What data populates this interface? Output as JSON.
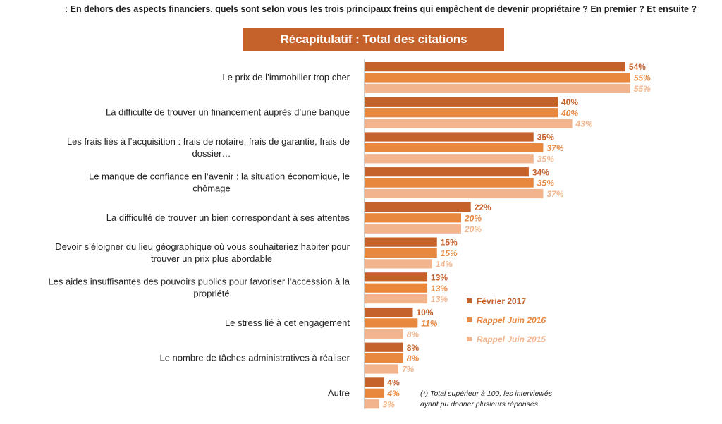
{
  "question": ":   En dehors des aspects financiers, quels sont selon vous les trois principaux freins qui empêchent de devenir propriétaire ? En premier ? Et ensuite ?",
  "title": "Récapitulatif : Total des citations",
  "footnote": {
    "line1": "(*) Total supérieur à 100, les interviewés",
    "line2": "ayant pu donner plusieurs réponses"
  },
  "colors": {
    "s1": "#c5612b",
    "s2": "#e8883f",
    "s3": "#f2b48c"
  },
  "chart_data": {
    "type": "bar",
    "orientation": "horizontal",
    "categories": [
      [
        "Le prix de l’immobilier trop cher"
      ],
      [
        "La difficulté de trouver un financement auprès d’une banque"
      ],
      [
        "Les frais liés à l’acquisition : frais de notaire, frais de garantie, frais de",
        "dossier…"
      ],
      [
        "Le manque de confiance en l’avenir : la situation économique, le",
        "chômage"
      ],
      [
        "La difficulté de trouver un bien correspondant à ses attentes"
      ],
      [
        "Devoir s’éloigner du lieu géographique où vous souhaiteriez habiter pour",
        "trouver un prix plus abordable"
      ],
      [
        "Les aides insuffisantes des pouvoirs publics pour favoriser l’accession à la",
        "propriété"
      ],
      [
        "Le stress lié à cet engagement"
      ],
      [
        "Le nombre de tâches administratives à réaliser"
      ],
      [
        "Autre"
      ]
    ],
    "series": [
      {
        "name": "Février 2017",
        "values": [
          54,
          40,
          35,
          34,
          22,
          15,
          13,
          10,
          8,
          4
        ]
      },
      {
        "name": "Rappel Juin 2016",
        "values": [
          55,
          40,
          37,
          35,
          20,
          15,
          13,
          11,
          8,
          4
        ]
      },
      {
        "name": "Rappel Juin 2015",
        "values": [
          55,
          43,
          35,
          37,
          20,
          14,
          13,
          8,
          7,
          3
        ]
      }
    ],
    "unit": "%",
    "legend": "right"
  }
}
